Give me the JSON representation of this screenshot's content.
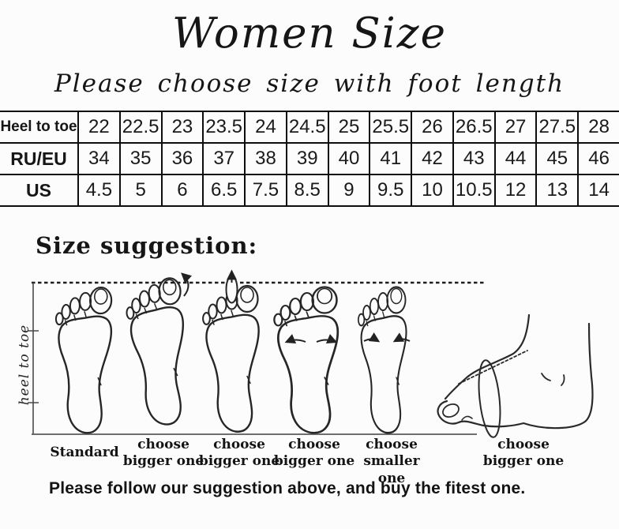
{
  "title": "Women Size",
  "subtitle": "Please choose size with foot length",
  "size_table": {
    "rows": [
      {
        "label": "Heel to toe",
        "values": [
          "22",
          "22.5",
          "23",
          "23.5",
          "24",
          "24.5",
          "25",
          "25.5",
          "26",
          "26.5",
          "27",
          "27.5",
          "28"
        ]
      },
      {
        "label": "RU/EU",
        "values": [
          "34",
          "35",
          "36",
          "37",
          "38",
          "39",
          "40",
          "41",
          "42",
          "43",
          "44",
          "45",
          "46"
        ]
      },
      {
        "label": "US",
        "values": [
          "4.5",
          "5",
          "6",
          "6.5",
          "7.5",
          "8.5",
          "9",
          "9.5",
          "10",
          "10.5",
          "12",
          "13",
          "14"
        ]
      }
    ]
  },
  "suggestion": {
    "heading": "Size suggestion:",
    "axis_label": "heel to toe",
    "feet": [
      {
        "type": "standard-footprint",
        "label": "Standard"
      },
      {
        "type": "long-big-toe-footprint",
        "label": "choose bigger one"
      },
      {
        "type": "long-second-toe-footprint",
        "label": "choose bigger one"
      },
      {
        "type": "wide-footprint",
        "label": "choose bigger one"
      },
      {
        "type": "narrow-footprint",
        "label": "choose smaller one"
      },
      {
        "type": "high-instep-side-foot",
        "label": "choose bigger one"
      }
    ]
  },
  "footer_note": "Please follow our suggestion above, and buy the fitest one.",
  "colors": {
    "ink": "#1c1c1c",
    "background": "#fcfcfc"
  }
}
